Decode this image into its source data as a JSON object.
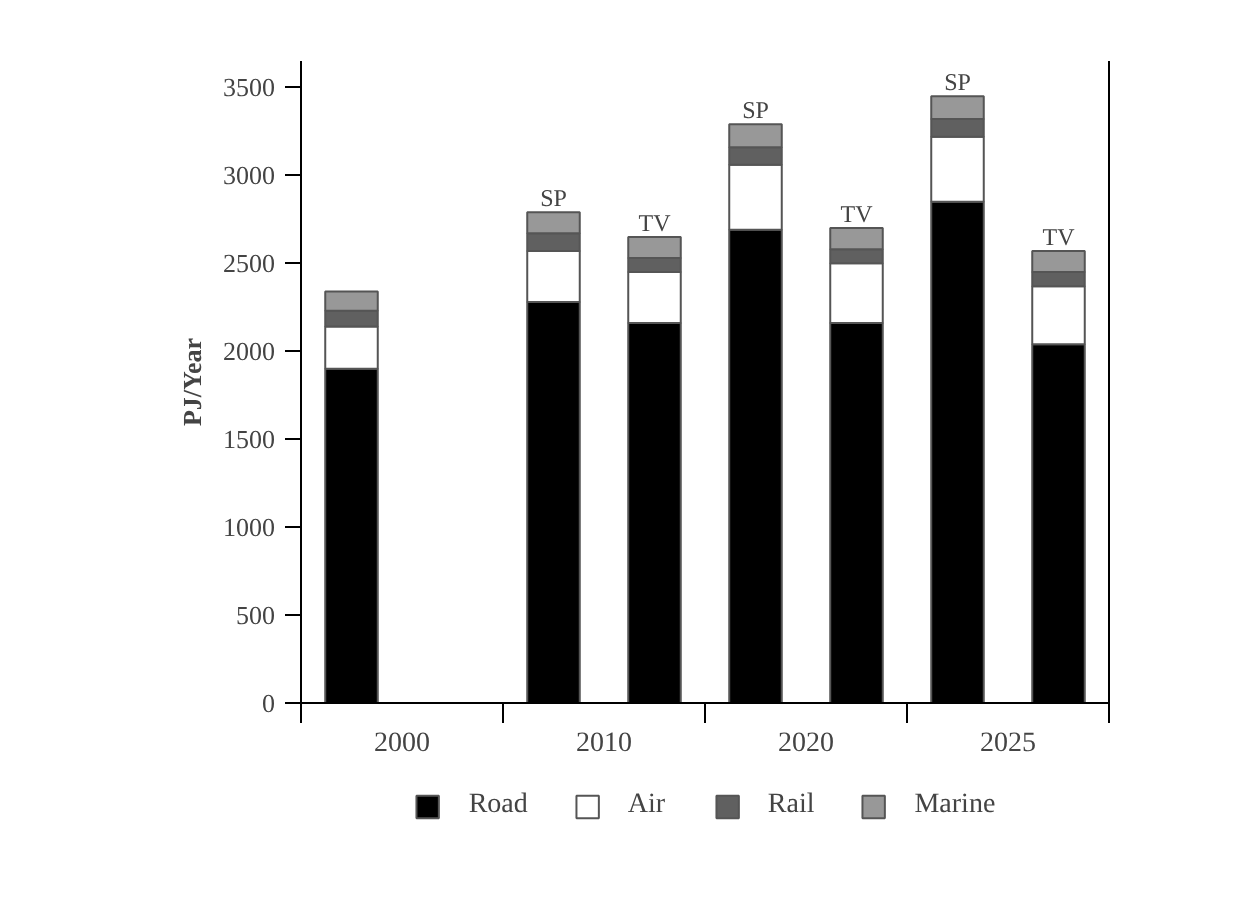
{
  "chart_data": {
    "type": "bar",
    "stacked": true,
    "ylabel": "PJ/Year",
    "categories": [
      "2000",
      null,
      "2010",
      null,
      "2020",
      null,
      "2025",
      null
    ],
    "series": [
      {
        "name": "Road",
        "color": "#000000",
        "values": [
          1900,
          null,
          2280,
          2160,
          2690,
          2160,
          2850,
          2040
        ]
      },
      {
        "name": "Air",
        "color": "#ffffff",
        "values": [
          240,
          null,
          290,
          290,
          370,
          340,
          370,
          330
        ]
      },
      {
        "name": "Rail",
        "color": "#606060",
        "values": [
          90,
          null,
          100,
          80,
          100,
          80,
          100,
          80
        ]
      },
      {
        "name": "Marine",
        "color": "#989898",
        "values": [
          110,
          null,
          120,
          120,
          130,
          120,
          130,
          120
        ],
        "value_labels": [
          null,
          null,
          "SP",
          "TV",
          "SP",
          "TV",
          "SP",
          "TV"
        ]
      }
    ],
    "ylim": [
      0,
      3650
    ],
    "yticks": [
      0,
      500,
      1000,
      1500,
      2000,
      2500,
      3000,
      3500
    ],
    "grid": false,
    "legend": "bottom"
  }
}
